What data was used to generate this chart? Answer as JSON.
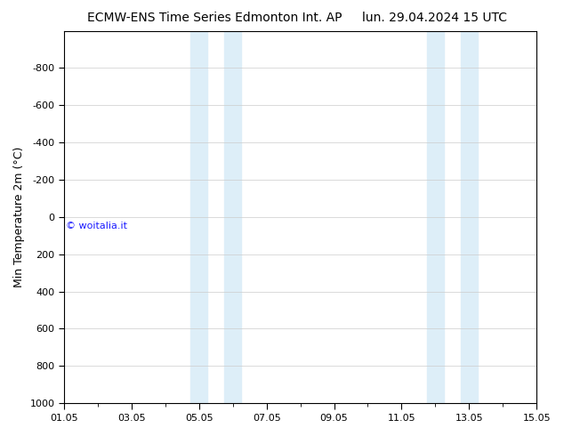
{
  "title_left": "ECMW-ENS Time Series Edmonton Int. AP",
  "title_right": "lun. 29.04.2024 15 UTC",
  "ylabel": "Min Temperature 2m (°C)",
  "ylim_top": -1000,
  "ylim_bottom": 1000,
  "yticks": [
    -800,
    -600,
    -400,
    -200,
    0,
    200,
    400,
    600,
    800,
    1000
  ],
  "xlim": [
    0,
    14
  ],
  "xtick_labels": [
    "01.05",
    "03.05",
    "05.05",
    "07.05",
    "09.05",
    "11.05",
    "13.05",
    "15.05"
  ],
  "xtick_positions": [
    0,
    2,
    4,
    6,
    8,
    10,
    12,
    14
  ],
  "shade_bands": [
    {
      "x_start": 3.75,
      "x_end": 4.25,
      "color": "#ddeef8",
      "alpha": 1.0
    },
    {
      "x_start": 4.75,
      "x_end": 5.25,
      "color": "#ddeef8",
      "alpha": 1.0
    },
    {
      "x_start": 10.75,
      "x_end": 11.25,
      "color": "#ddeef8",
      "alpha": 1.0
    },
    {
      "x_start": 11.75,
      "x_end": 12.25,
      "color": "#ddeef8",
      "alpha": 1.0
    }
  ],
  "watermark_text": "© woitalia.it",
  "watermark_color": "#1a1aff",
  "watermark_x_data": 0.05,
  "watermark_y_data": 50,
  "background_color": "#ffffff",
  "grid_color": "#cccccc",
  "title_fontsize": 10,
  "ylabel_fontsize": 9,
  "tick_fontsize": 8,
  "watermark_fontsize": 8
}
